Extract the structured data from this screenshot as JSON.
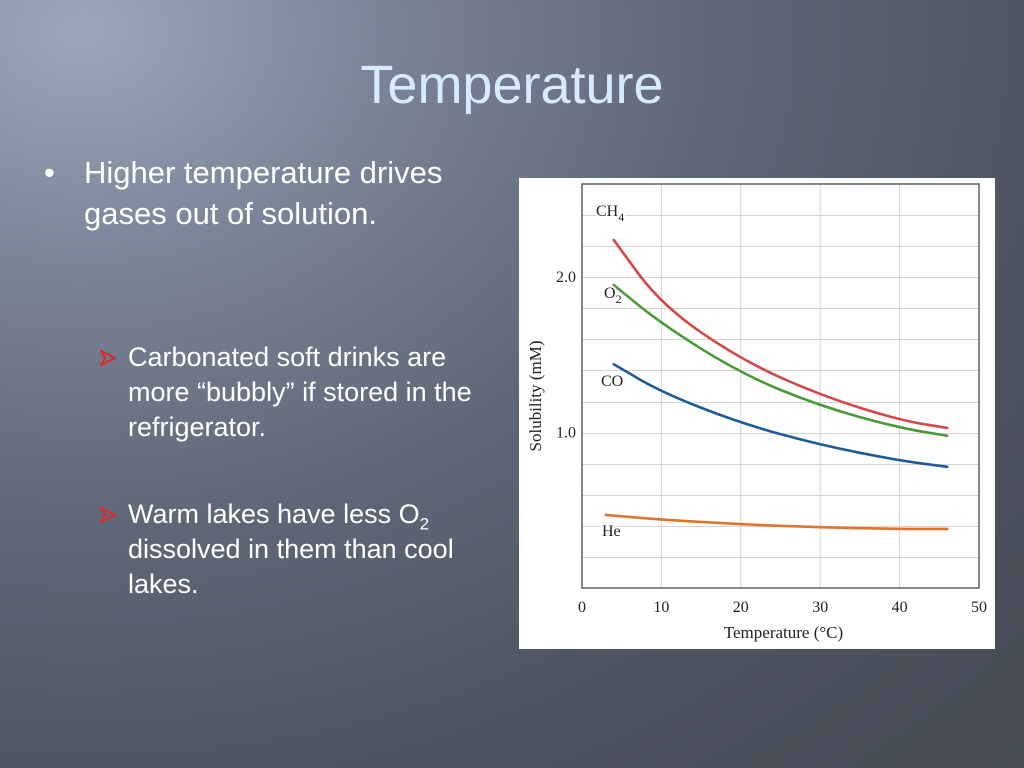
{
  "slide": {
    "title": "Temperature",
    "bullet": "Higher temperature drives gases out of solution.",
    "sub_bullets": [
      {
        "text": "Carbonated soft drinks are more “bubbly” if stored in the refrigerator."
      },
      {
        "pre": "Warm lakes have less O",
        "subscript": "2",
        "post": " dissolved in them than cool lakes."
      }
    ]
  },
  "chart_data": {
    "type": "line",
    "xlabel": "Temperature (°C)",
    "ylabel": "Solubility (mM)",
    "xlim": [
      0,
      50
    ],
    "ylim": [
      0,
      2.6
    ],
    "x_ticks": [
      0,
      10,
      20,
      30,
      40,
      50
    ],
    "y_ticks": [
      1.0,
      2.0
    ],
    "y_tick_labels": [
      "1.0",
      "2.0"
    ],
    "grid": true,
    "series": [
      {
        "name": "CH4",
        "label_main": "CH",
        "label_sub": "4",
        "color": "#d64848",
        "x": [
          4,
          10,
          20,
          30,
          40,
          46
        ],
        "y": [
          2.24,
          1.82,
          1.47,
          1.24,
          1.08,
          1.03
        ]
      },
      {
        "name": "O2",
        "label_main": "O",
        "label_sub": "2",
        "color": "#4a9a3a",
        "x": [
          4,
          10,
          20,
          30,
          40,
          46
        ],
        "y": [
          1.95,
          1.7,
          1.38,
          1.17,
          1.03,
          0.98
        ]
      },
      {
        "name": "CO",
        "label_main": "CO",
        "label_sub": "",
        "color": "#1f5c96",
        "x": [
          4,
          10,
          20,
          30,
          40,
          46
        ],
        "y": [
          1.44,
          1.26,
          1.06,
          0.92,
          0.82,
          0.78
        ]
      },
      {
        "name": "He",
        "label_main": "He",
        "label_sub": "",
        "color": "#e0752a",
        "x": [
          3,
          10,
          20,
          30,
          40,
          46
        ],
        "y": [
          0.47,
          0.44,
          0.41,
          0.39,
          0.38,
          0.38
        ]
      }
    ]
  }
}
